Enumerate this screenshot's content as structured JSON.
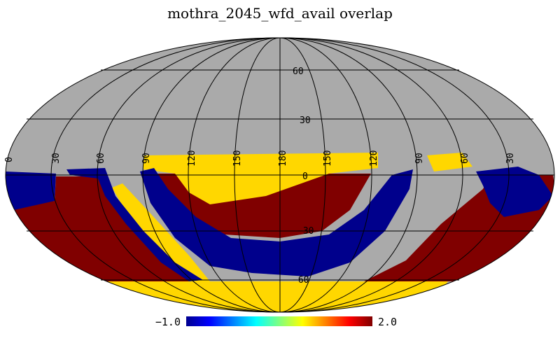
{
  "chart_data": {
    "type": "heatmap",
    "projection": "Mollweide",
    "title": "mothra_2045_wfd_avail overlap",
    "colorbar": {
      "min_label": "−1.0",
      "max_label": "2.0",
      "range": [
        -1.0,
        2.0
      ],
      "colormap": "jet"
    },
    "latitude_labels": [
      "60",
      "30",
      "0",
      "−30",
      "−60"
    ],
    "longitude_labels": [
      "0",
      "30",
      "60",
      "90",
      "120",
      "150",
      "180",
      "150",
      "120",
      "90",
      "60",
      "30"
    ],
    "value_colors": {
      "background": "#aaaaaa",
      "minus_one": "#00008c",
      "one_point_five": "#ffd700",
      "two": "#800000"
    },
    "grid": true
  }
}
